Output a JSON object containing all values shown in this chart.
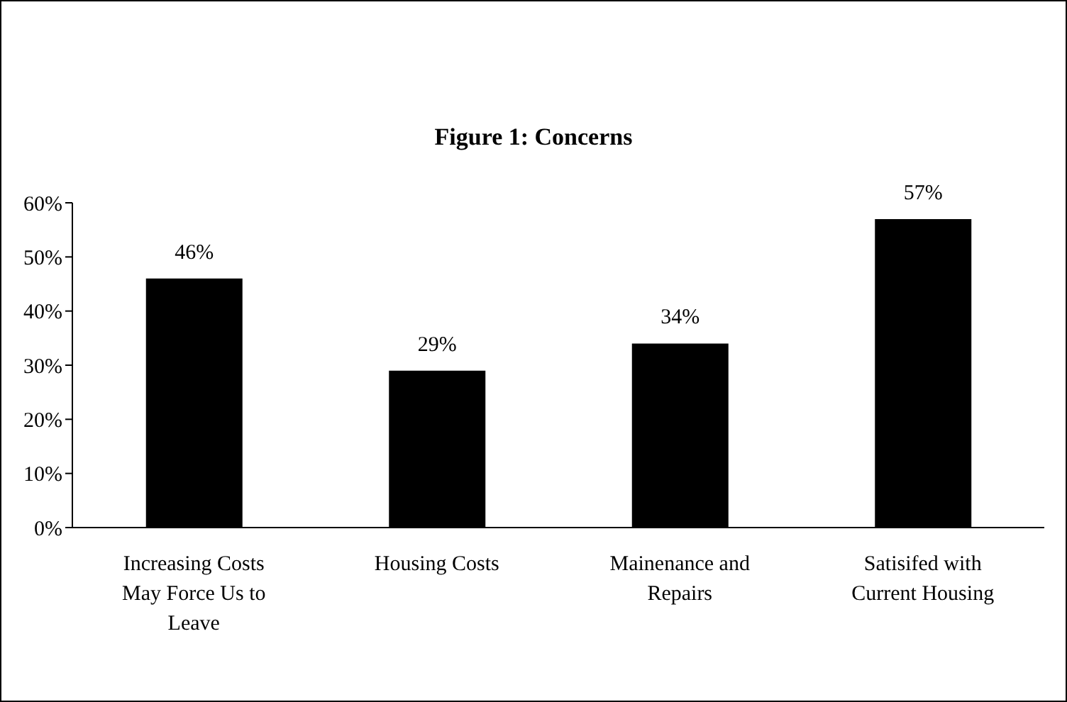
{
  "chart_data": {
    "type": "bar",
    "title": "Figure 1: Concerns",
    "categories": [
      "Increasing Costs May Force Us to Leave",
      "Housing Costs",
      "Mainenance and Repairs",
      "Satisifed with Current Housing"
    ],
    "values": [
      46,
      29,
      34,
      57
    ],
    "color": "#000000",
    "value_labels": [
      "46%",
      "29%",
      "34%",
      "57%"
    ],
    "ylim": [
      0,
      60
    ],
    "yticks": [
      {
        "value": 0,
        "label": "0%"
      },
      {
        "value": 10,
        "label": "10%"
      },
      {
        "value": 20,
        "label": "20%"
      },
      {
        "value": 30,
        "label": "30%"
      },
      {
        "value": 40,
        "label": "40%"
      },
      {
        "value": 50,
        "label": "50%"
      },
      {
        "value": 60,
        "label": "60%"
      }
    ],
    "grid": false,
    "legend": false
  }
}
